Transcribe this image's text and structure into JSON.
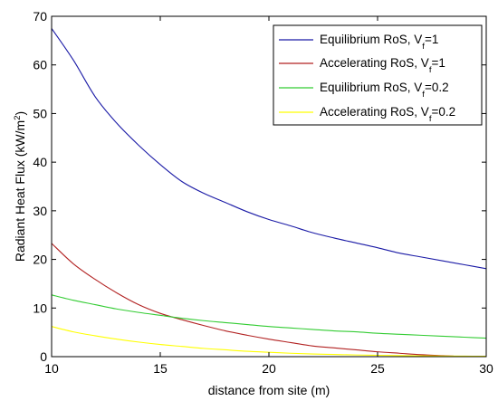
{
  "chart_data": {
    "type": "line",
    "xlabel": "distance from site (m)",
    "ylabel": {
      "main": "Radiant Heat Flux (kW/m",
      "sup": "2",
      "end": ")"
    },
    "xlim": [
      10,
      30
    ],
    "ylim": [
      0,
      70
    ],
    "x_ticks": [
      10,
      15,
      20,
      25,
      30
    ],
    "y_ticks": [
      0,
      10,
      20,
      30,
      40,
      50,
      60,
      70
    ],
    "grid": false,
    "legend_position": "top-right",
    "series": [
      {
        "name": {
          "main": "Equilibrium RoS, V",
          "sub": "f",
          "rest": "=1"
        },
        "color": "#1a1aa6",
        "x": [
          10,
          11,
          12,
          13,
          14,
          15,
          16,
          17,
          18,
          19,
          20,
          21,
          22,
          23,
          24,
          25,
          26,
          27,
          28,
          29,
          30
        ],
        "y": [
          67.5,
          61,
          53.5,
          48,
          43.5,
          39.5,
          36,
          33.6,
          31.7,
          29.8,
          28.2,
          26.9,
          25.5,
          24.4,
          23.4,
          22.4,
          21.3,
          20.5,
          19.7,
          18.9,
          18.1
        ]
      },
      {
        "name": {
          "main": "Accelerating RoS, V",
          "sub": "f",
          "rest": "=1"
        },
        "color": "#b22222",
        "x": [
          10,
          11,
          12,
          13,
          14,
          15,
          16,
          17,
          18,
          19,
          20,
          21,
          22,
          23,
          24,
          25,
          26,
          27,
          28,
          28.5
        ],
        "y": [
          23.3,
          19.1,
          15.9,
          13.1,
          10.7,
          8.9,
          7.6,
          6.4,
          5.3,
          4.4,
          3.6,
          2.9,
          2.2,
          1.8,
          1.4,
          1.0,
          0.7,
          0.4,
          0.2,
          0.1
        ]
      },
      {
        "name": {
          "main": "Equilibrium RoS, V",
          "sub": "f",
          "rest": "=0.2"
        },
        "color": "#33cc33",
        "x": [
          10,
          11,
          12,
          13,
          14,
          15,
          16,
          17,
          18,
          19,
          20,
          21,
          22,
          23,
          24,
          25,
          26,
          27,
          28,
          29,
          30
        ],
        "y": [
          12.7,
          11.6,
          10.7,
          9.8,
          9.1,
          8.5,
          7.9,
          7.4,
          7.0,
          6.6,
          6.2,
          5.9,
          5.6,
          5.3,
          5.1,
          4.8,
          4.6,
          4.4,
          4.2,
          4.0,
          3.8
        ]
      },
      {
        "name": {
          "main": "Accelerating RoS, V",
          "sub": "f",
          "rest": "=0.2"
        },
        "color": "#ffff00",
        "x": [
          10,
          11,
          12,
          13,
          14,
          15,
          16,
          17,
          18,
          19,
          20,
          21,
          22,
          23,
          24,
          25,
          26,
          27,
          28,
          29,
          30
        ],
        "y": [
          6.2,
          5.1,
          4.3,
          3.6,
          3.0,
          2.5,
          2.1,
          1.7,
          1.4,
          1.1,
          0.9,
          0.7,
          0.55,
          0.45,
          0.35,
          0.28,
          0.22,
          0.17,
          0.13,
          0.1,
          0.08
        ]
      }
    ]
  }
}
